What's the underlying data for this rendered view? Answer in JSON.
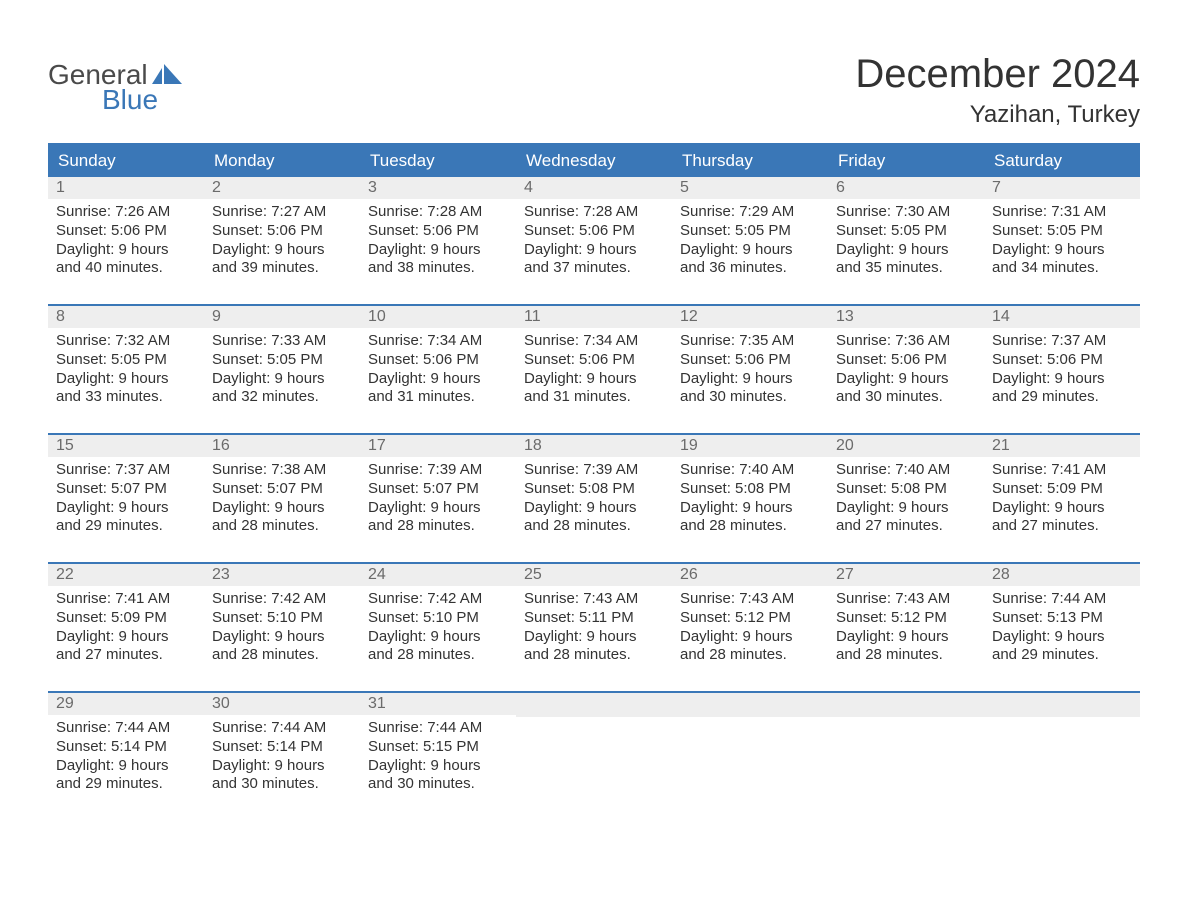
{
  "branding": {
    "logo_word1": "General",
    "logo_word2": "Blue",
    "logo_gray": "#4a4a4a",
    "logo_blue": "#3a77b7"
  },
  "title": {
    "month": "December 2024",
    "location": "Yazihan, Turkey",
    "title_fontsize": 40,
    "location_fontsize": 24,
    "title_color": "#333333"
  },
  "style": {
    "header_bg": "#3a77b7",
    "header_text": "#ffffff",
    "daynum_bg": "#eeeeee",
    "daynum_color": "#6b6b6b",
    "body_text": "#333333",
    "row_sep_color": "#3a77b7",
    "background": "#ffffff",
    "font_family": "Arial",
    "cell_fontsize": 15,
    "daynum_fontsize": 16,
    "header_fontsize": 17
  },
  "weekdays": [
    "Sunday",
    "Monday",
    "Tuesday",
    "Wednesday",
    "Thursday",
    "Friday",
    "Saturday"
  ],
  "weeks": [
    [
      {
        "day": "1",
        "sunrise": "7:26 AM",
        "sunset": "5:06 PM",
        "dl_hours": "9",
        "dl_minutes": "40"
      },
      {
        "day": "2",
        "sunrise": "7:27 AM",
        "sunset": "5:06 PM",
        "dl_hours": "9",
        "dl_minutes": "39"
      },
      {
        "day": "3",
        "sunrise": "7:28 AM",
        "sunset": "5:06 PM",
        "dl_hours": "9",
        "dl_minutes": "38"
      },
      {
        "day": "4",
        "sunrise": "7:28 AM",
        "sunset": "5:06 PM",
        "dl_hours": "9",
        "dl_minutes": "37"
      },
      {
        "day": "5",
        "sunrise": "7:29 AM",
        "sunset": "5:05 PM",
        "dl_hours": "9",
        "dl_minutes": "36"
      },
      {
        "day": "6",
        "sunrise": "7:30 AM",
        "sunset": "5:05 PM",
        "dl_hours": "9",
        "dl_minutes": "35"
      },
      {
        "day": "7",
        "sunrise": "7:31 AM",
        "sunset": "5:05 PM",
        "dl_hours": "9",
        "dl_minutes": "34"
      }
    ],
    [
      {
        "day": "8",
        "sunrise": "7:32 AM",
        "sunset": "5:05 PM",
        "dl_hours": "9",
        "dl_minutes": "33"
      },
      {
        "day": "9",
        "sunrise": "7:33 AM",
        "sunset": "5:05 PM",
        "dl_hours": "9",
        "dl_minutes": "32"
      },
      {
        "day": "10",
        "sunrise": "7:34 AM",
        "sunset": "5:06 PM",
        "dl_hours": "9",
        "dl_minutes": "31"
      },
      {
        "day": "11",
        "sunrise": "7:34 AM",
        "sunset": "5:06 PM",
        "dl_hours": "9",
        "dl_minutes": "31"
      },
      {
        "day": "12",
        "sunrise": "7:35 AM",
        "sunset": "5:06 PM",
        "dl_hours": "9",
        "dl_minutes": "30"
      },
      {
        "day": "13",
        "sunrise": "7:36 AM",
        "sunset": "5:06 PM",
        "dl_hours": "9",
        "dl_minutes": "30"
      },
      {
        "day": "14",
        "sunrise": "7:37 AM",
        "sunset": "5:06 PM",
        "dl_hours": "9",
        "dl_minutes": "29"
      }
    ],
    [
      {
        "day": "15",
        "sunrise": "7:37 AM",
        "sunset": "5:07 PM",
        "dl_hours": "9",
        "dl_minutes": "29"
      },
      {
        "day": "16",
        "sunrise": "7:38 AM",
        "sunset": "5:07 PM",
        "dl_hours": "9",
        "dl_minutes": "28"
      },
      {
        "day": "17",
        "sunrise": "7:39 AM",
        "sunset": "5:07 PM",
        "dl_hours": "9",
        "dl_minutes": "28"
      },
      {
        "day": "18",
        "sunrise": "7:39 AM",
        "sunset": "5:08 PM",
        "dl_hours": "9",
        "dl_minutes": "28"
      },
      {
        "day": "19",
        "sunrise": "7:40 AM",
        "sunset": "5:08 PM",
        "dl_hours": "9",
        "dl_minutes": "28"
      },
      {
        "day": "20",
        "sunrise": "7:40 AM",
        "sunset": "5:08 PM",
        "dl_hours": "9",
        "dl_minutes": "27"
      },
      {
        "day": "21",
        "sunrise": "7:41 AM",
        "sunset": "5:09 PM",
        "dl_hours": "9",
        "dl_minutes": "27"
      }
    ],
    [
      {
        "day": "22",
        "sunrise": "7:41 AM",
        "sunset": "5:09 PM",
        "dl_hours": "9",
        "dl_minutes": "27"
      },
      {
        "day": "23",
        "sunrise": "7:42 AM",
        "sunset": "5:10 PM",
        "dl_hours": "9",
        "dl_minutes": "28"
      },
      {
        "day": "24",
        "sunrise": "7:42 AM",
        "sunset": "5:10 PM",
        "dl_hours": "9",
        "dl_minutes": "28"
      },
      {
        "day": "25",
        "sunrise": "7:43 AM",
        "sunset": "5:11 PM",
        "dl_hours": "9",
        "dl_minutes": "28"
      },
      {
        "day": "26",
        "sunrise": "7:43 AM",
        "sunset": "5:12 PM",
        "dl_hours": "9",
        "dl_minutes": "28"
      },
      {
        "day": "27",
        "sunrise": "7:43 AM",
        "sunset": "5:12 PM",
        "dl_hours": "9",
        "dl_minutes": "28"
      },
      {
        "day": "28",
        "sunrise": "7:44 AM",
        "sunset": "5:13 PM",
        "dl_hours": "9",
        "dl_minutes": "29"
      }
    ],
    [
      {
        "day": "29",
        "sunrise": "7:44 AM",
        "sunset": "5:14 PM",
        "dl_hours": "9",
        "dl_minutes": "29"
      },
      {
        "day": "30",
        "sunrise": "7:44 AM",
        "sunset": "5:14 PM",
        "dl_hours": "9",
        "dl_minutes": "30"
      },
      {
        "day": "31",
        "sunrise": "7:44 AM",
        "sunset": "5:15 PM",
        "dl_hours": "9",
        "dl_minutes": "30"
      },
      null,
      null,
      null,
      null
    ]
  ],
  "labels": {
    "sunrise": "Sunrise:",
    "sunset": "Sunset:",
    "daylight_prefix": "Daylight:",
    "daylight_hours_word": "hours",
    "daylight_and": "and",
    "daylight_minutes_word": "minutes."
  }
}
